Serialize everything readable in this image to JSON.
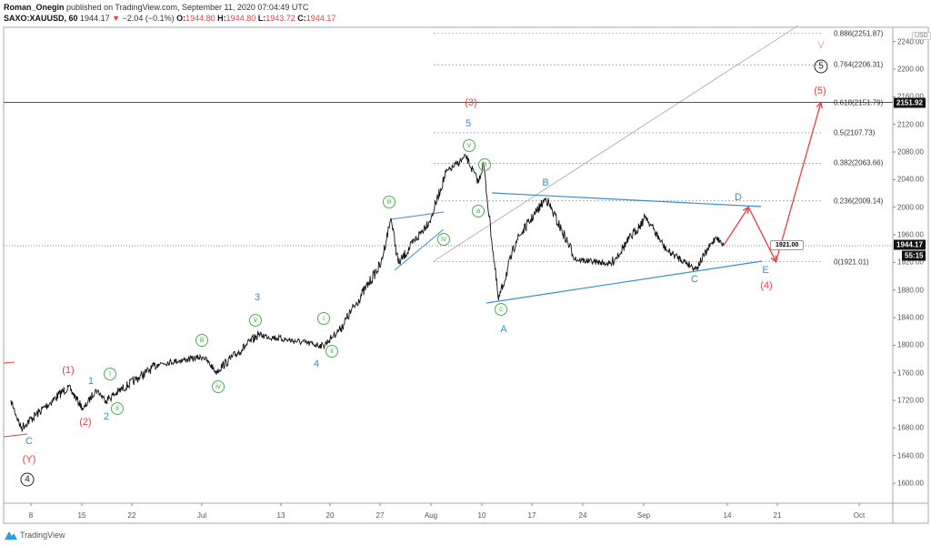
{
  "header": {
    "publisher": "Roman_Onegin",
    "published_text": "published on TradingView.com, September 11, 2020 07:04:49 UTC",
    "symbol": "SAXO:XAUUSD, 60",
    "last": "1944.17",
    "change": "−2.04 (−0.1%)",
    "o_label": "O:",
    "o": "1944.80",
    "h_label": "H:",
    "h": "1944.80",
    "l_label": "L:",
    "l": "1943.72",
    "c_label": "C:",
    "c": "1944.17"
  },
  "price_axis": {
    "currency": "USD",
    "last_price_tag": "1944.17",
    "countdown_tag": "55:15",
    "hline_tag": "2151.92"
  },
  "fib_levels": [
    {
      "label": "0.886(2251.87)",
      "price": 2251.87
    },
    {
      "label": "0.764(2206.31)",
      "price": 2206.31
    },
    {
      "label": "0.618(2151.79)",
      "price": 2151.79
    },
    {
      "label": "0.5(2107.73)",
      "price": 2107.73
    },
    {
      "label": "0.382(2063.66)",
      "price": 2063.66
    },
    {
      "label": "0.236(2009.14)",
      "price": 2009.14
    },
    {
      "label": "0(1921.01)",
      "price": 1921.01
    }
  ],
  "callout": "1921.00",
  "wave_labels": {
    "p3": "(3)",
    "b5": "5",
    "cv": "v",
    "cb": "b",
    "ca": "a",
    "ciii": "iii",
    "civ": "iv",
    "cc": "c",
    "A": "A",
    "B": "B",
    "C": "C",
    "D": "D",
    "E": "E",
    "p4": "(4)",
    "p5": "(5)",
    "k5": "5",
    "V": "V",
    "p1": "(1)",
    "b1": "1",
    "ci": "i",
    "p2": "(2)",
    "b2": "2",
    "cii": "ii",
    "ciii2": "iii",
    "civ2": "iv",
    "b3": "3",
    "cv2": "v",
    "b4": "4",
    "ci2": "i",
    "cii2": "ii",
    "C0": "C",
    "pY": "(Y)",
    "k4": "4"
  },
  "footer": {
    "brand": "TradingView"
  },
  "chart_data": {
    "type": "line",
    "title": "SAXO:XAUUSD, 60",
    "y_ticks": [
      1600,
      1640,
      1680,
      1720,
      1760,
      1800,
      1840,
      1880,
      1920,
      1960,
      2000,
      2040,
      2080,
      2120,
      2160,
      2200,
      2240
    ],
    "ylim": [
      1570,
      2265
    ],
    "x_ticks": [
      "8",
      "15",
      "22",
      "Jul",
      "13",
      "20",
      "27",
      "Aug",
      "10",
      "17",
      "24",
      "Sep",
      "14",
      "21",
      "Oct"
    ],
    "grid": false,
    "series": [
      {
        "x": [
          "2020-06-04 00:00",
          "2020-06-05 12:00",
          "2020-06-11 18:00",
          "2020-06-15 06:00",
          "2020-06-16 12:00",
          "2020-06-17 12:00",
          "2020-06-24 18:00",
          "2020-07-01 06:00",
          "2020-07-02 12:00",
          "2020-07-08 18:00",
          "2020-07-17 06:00",
          "2020-07-21 00:00",
          "2020-07-27 00:00",
          "2020-07-28 00:00",
          "2020-07-28 18:00",
          "2020-08-03 00:00",
          "2020-08-04 12:00",
          "2020-08-06 12:00",
          "2020-08-07 18:00",
          "2020-08-10 06:00",
          "2020-08-11 18:00",
          "2020-08-13 12:00",
          "2020-08-18 12:00",
          "2020-08-21 12:00",
          "2020-08-27 00:00",
          "2020-09-01 12:00",
          "2020-09-03 12:00",
          "2020-09-08 12:00",
          "2020-09-10 12:00",
          "2020-09-11 06:00"
        ],
        "y": [
          1720,
          1680,
          1740,
          1707,
          1736,
          1720,
          1773,
          1783,
          1762,
          1815,
          1799,
          1825,
          1918,
          1984,
          1918,
          1984,
          2050,
          2073,
          2036,
          2063,
          1865,
          1951,
          2013,
          1924,
          1918,
          1986,
          1938,
          1911,
          1957,
          1944.17
        ]
      }
    ],
    "projection": {
      "x": [
        "2020-09-11 06:00",
        "2020-09-15 18:00",
        "2020-09-18 12:00",
        "2020-09-25 00:00"
      ],
      "y": [
        1944.17,
        2000,
        1921,
        2152
      ]
    },
    "colors": {
      "price": "#111111",
      "projection": "#f23b3b",
      "trendline": "#3a8fd6",
      "wave_green": "#4caf50"
    }
  }
}
